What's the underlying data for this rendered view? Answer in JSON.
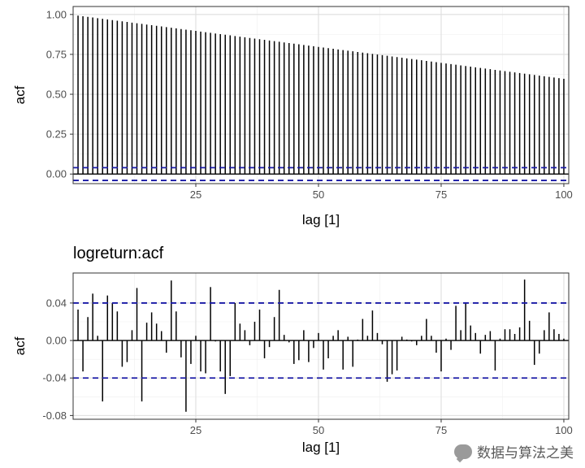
{
  "watermark": {
    "text": "数据与算法之美"
  },
  "colors": {
    "bar": "#000000",
    "ci": "#1a1aa6",
    "grid_major": "#dedede",
    "grid_minor": "#efefef",
    "panel": "#ffffff",
    "border": "#333333"
  },
  "chart_data": [
    {
      "type": "bar",
      "title": "",
      "xlabel": "lag [1]",
      "ylabel": "acf",
      "xlim": [
        0,
        101
      ],
      "ylim": [
        -0.06,
        1.05
      ],
      "xticks": [
        25,
        50,
        75,
        100
      ],
      "xtick_labels": [
        "25",
        "50",
        "75",
        "100"
      ],
      "yticks": [
        0,
        0.25,
        0.5,
        0.75,
        1.0
      ],
      "ytick_labels": [
        "0.00",
        "0.25",
        "0.50",
        "0.75",
        "1.00"
      ],
      "ci": 0.04,
      "grid": true,
      "lags": [
        1,
        2,
        3,
        4,
        5,
        6,
        7,
        8,
        9,
        10,
        11,
        12,
        13,
        14,
        15,
        16,
        17,
        18,
        19,
        20,
        21,
        22,
        23,
        24,
        25,
        26,
        27,
        28,
        29,
        30,
        31,
        32,
        33,
        34,
        35,
        36,
        37,
        38,
        39,
        40,
        41,
        42,
        43,
        44,
        45,
        46,
        47,
        48,
        49,
        50,
        51,
        52,
        53,
        54,
        55,
        56,
        57,
        58,
        59,
        60,
        61,
        62,
        63,
        64,
        65,
        66,
        67,
        68,
        69,
        70,
        71,
        72,
        73,
        74,
        75,
        76,
        77,
        78,
        79,
        80,
        81,
        82,
        83,
        84,
        85,
        86,
        87,
        88,
        89,
        90,
        91,
        92,
        93,
        94,
        95,
        96,
        97,
        98,
        99,
        100
      ],
      "values": [
        0.993,
        0.989,
        0.985,
        0.981,
        0.977,
        0.973,
        0.969,
        0.965,
        0.961,
        0.957,
        0.953,
        0.949,
        0.945,
        0.941,
        0.937,
        0.933,
        0.929,
        0.925,
        0.921,
        0.917,
        0.913,
        0.909,
        0.905,
        0.901,
        0.897,
        0.893,
        0.889,
        0.885,
        0.881,
        0.877,
        0.873,
        0.869,
        0.865,
        0.861,
        0.857,
        0.853,
        0.849,
        0.845,
        0.841,
        0.837,
        0.833,
        0.829,
        0.825,
        0.821,
        0.817,
        0.813,
        0.809,
        0.805,
        0.801,
        0.797,
        0.793,
        0.789,
        0.785,
        0.781,
        0.777,
        0.773,
        0.769,
        0.765,
        0.761,
        0.757,
        0.753,
        0.749,
        0.745,
        0.741,
        0.737,
        0.733,
        0.729,
        0.725,
        0.721,
        0.717,
        0.713,
        0.709,
        0.705,
        0.701,
        0.697,
        0.693,
        0.689,
        0.685,
        0.681,
        0.677,
        0.673,
        0.669,
        0.665,
        0.661,
        0.657,
        0.653,
        0.649,
        0.645,
        0.641,
        0.637,
        0.633,
        0.629,
        0.625,
        0.621,
        0.617,
        0.613,
        0.609,
        0.605,
        0.601,
        0.597
      ]
    },
    {
      "type": "bar",
      "title": "logreturn:acf",
      "xlabel": "lag [1]",
      "ylabel": "acf",
      "xlim": [
        0,
        101
      ],
      "ylim": [
        -0.084,
        0.072
      ],
      "xticks": [
        25,
        50,
        75,
        100
      ],
      "xtick_labels": [
        "25",
        "50",
        "75",
        "100"
      ],
      "yticks": [
        -0.08,
        -0.04,
        0,
        0.04
      ],
      "ytick_labels": [
        "-0.08",
        "-0.04",
        "0.00",
        "0.04"
      ],
      "ci": 0.04,
      "grid": true,
      "lags": [
        1,
        2,
        3,
        4,
        5,
        6,
        7,
        8,
        9,
        10,
        11,
        12,
        13,
        14,
        15,
        16,
        17,
        18,
        19,
        20,
        21,
        22,
        23,
        24,
        25,
        26,
        27,
        28,
        29,
        30,
        31,
        32,
        33,
        34,
        35,
        36,
        37,
        38,
        39,
        40,
        41,
        42,
        43,
        44,
        45,
        46,
        47,
        48,
        49,
        50,
        51,
        52,
        53,
        54,
        55,
        56,
        57,
        58,
        59,
        60,
        61,
        62,
        63,
        64,
        65,
        66,
        67,
        68,
        69,
        70,
        71,
        72,
        73,
        74,
        75,
        76,
        77,
        78,
        79,
        80,
        81,
        82,
        83,
        84,
        85,
        86,
        87,
        88,
        89,
        90,
        91,
        92,
        93,
        94,
        95,
        96,
        97,
        98,
        99,
        100
      ],
      "values": [
        0.033,
        -0.033,
        0.025,
        0.05,
        0.005,
        -0.065,
        0.048,
        0.04,
        0.031,
        -0.028,
        -0.023,
        0.011,
        0.056,
        -0.065,
        0.019,
        0.03,
        0.018,
        0.01,
        -0.013,
        0.064,
        0.031,
        -0.018,
        -0.076,
        -0.025,
        0.005,
        -0.033,
        -0.035,
        0.057,
        -0.001,
        -0.033,
        -0.057,
        -0.038,
        0.04,
        0.018,
        0.011,
        -0.005,
        0.02,
        0.033,
        -0.019,
        -0.007,
        0.025,
        0.054,
        0.006,
        -0.002,
        -0.025,
        -0.021,
        0.011,
        -0.023,
        -0.008,
        0.008,
        -0.031,
        -0.019,
        0.005,
        0.011,
        -0.031,
        0.004,
        -0.028,
        0.001,
        0.023,
        0.005,
        0.032,
        0.008,
        -0.004,
        -0.044,
        -0.036,
        -0.032,
        0.004,
        0.001,
        -0.001,
        -0.005,
        0.005,
        0.023,
        0.005,
        -0.013,
        -0.033,
        0.002,
        -0.01,
        0.037,
        0.011,
        0.04,
        0.016,
        0.008,
        -0.014,
        0.006,
        0.01,
        -0.032,
        0.002,
        0.012,
        0.012,
        0.007,
        0.014,
        0.065,
        0.021,
        -0.026,
        -0.014,
        0.011,
        0.03,
        0.012,
        0.007,
        0.002
      ]
    }
  ]
}
